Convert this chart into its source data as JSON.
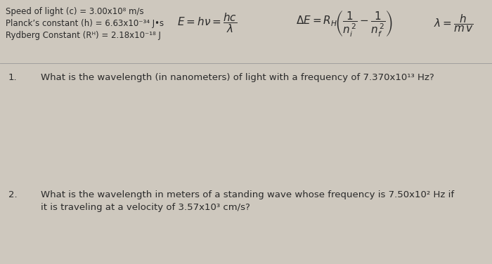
{
  "bg_color": "#cec8be",
  "text_color": "#2a2a2a",
  "header_line1": "Speed of light (c) = 3.00x10⁸ m/s",
  "header_line2": "Planck’s constant (h) = 6.63x10⁻³⁴ J•s",
  "header_line3": "Rydberg Constant (Rᴴ) = 2.18x10⁻¹⁸ J",
  "q1_number": "1.",
  "q1_text": "What is the wavelength (in nanometers) of light with a frequency of 7.370x10¹³ Hz?",
  "q2_number": "2.",
  "q2_line1": "What is the wavelength in meters of a standing wave whose frequency is 7.50x10² Hz if",
  "q2_line2": "it is traveling at a velocity of 3.57x10³ cm/s?",
  "fontsize_header": 8.5,
  "fontsize_formulas": 11,
  "fontsize_questions": 9.5,
  "fig_width": 7.0,
  "fig_height": 3.76,
  "dpi": 100
}
